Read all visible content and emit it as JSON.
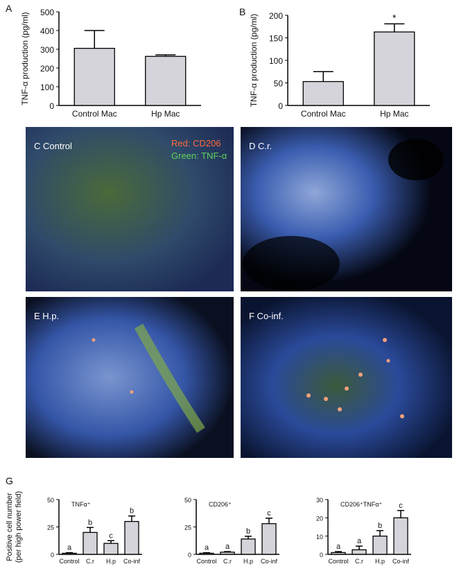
{
  "chart_data": [
    {
      "type": "bar",
      "panel": "A",
      "ylabel": "TNF-α production (pg/ml)",
      "categories": [
        "Control Mac",
        "Hp Mac"
      ],
      "values": [
        305,
        262
      ],
      "errors": [
        95,
        8
      ],
      "color": "#d4d4da",
      "ylim": [
        0,
        500
      ],
      "yticks": [
        0,
        100,
        200,
        300,
        400,
        500
      ]
    },
    {
      "type": "bar",
      "panel": "B",
      "ylabel": "TNF-α production (pg/ml)",
      "categories": [
        "Control Mac",
        "Hp Mac"
      ],
      "values": [
        53,
        163
      ],
      "errors": [
        22,
        18
      ],
      "annotations": [
        null,
        "*"
      ],
      "color": "#d4d4da",
      "ylim": [
        0,
        200
      ],
      "yticks": [
        0,
        50,
        100,
        150,
        200
      ]
    },
    {
      "type": "bar",
      "panel": "G",
      "title": "TNFα⁺",
      "ylabel": [
        "Positive cell number",
        "(per high power field)"
      ],
      "categories": [
        "Control",
        "C.r",
        "H.p",
        "Co-inf"
      ],
      "values": [
        1,
        20,
        10,
        30
      ],
      "errors": [
        0.5,
        4.5,
        2.5,
        5
      ],
      "annotations": [
        "a",
        "b",
        "c",
        "b"
      ],
      "color": "#d4d4da",
      "ylim": [
        0,
        50
      ],
      "yticks": [
        0,
        25,
        50
      ]
    },
    {
      "type": "bar",
      "title": "CD206⁺",
      "categories": [
        "Control",
        "C.r",
        "H.p",
        "Co-inf"
      ],
      "values": [
        1,
        2,
        14,
        28
      ],
      "errors": [
        0.5,
        0.5,
        2.5,
        5
      ],
      "annotations": [
        "a",
        "a",
        "b",
        "c"
      ],
      "color": "#d4d4da",
      "ylim": [
        0,
        50
      ],
      "yticks": [
        0,
        25,
        50
      ]
    },
    {
      "type": "bar",
      "title": "CD206⁺TNFα⁺",
      "categories": [
        "Control",
        "C.r",
        "H.p",
        "Co-inf"
      ],
      "values": [
        1,
        2.5,
        10,
        20
      ],
      "errors": [
        0.5,
        2,
        3,
        4
      ],
      "annotations": [
        "a",
        "a",
        "b",
        "c"
      ],
      "color": "#d4d4da",
      "ylim": [
        0,
        30
      ],
      "yticks": [
        0,
        10,
        20,
        30
      ]
    }
  ],
  "images": [
    {
      "label": "C  Control",
      "legend": [
        "Red: CD206",
        "Green: TNF-α"
      ]
    },
    {
      "label": "D  C.r."
    },
    {
      "label": "E  H.p."
    },
    {
      "label": "F  Co-inf."
    }
  ]
}
